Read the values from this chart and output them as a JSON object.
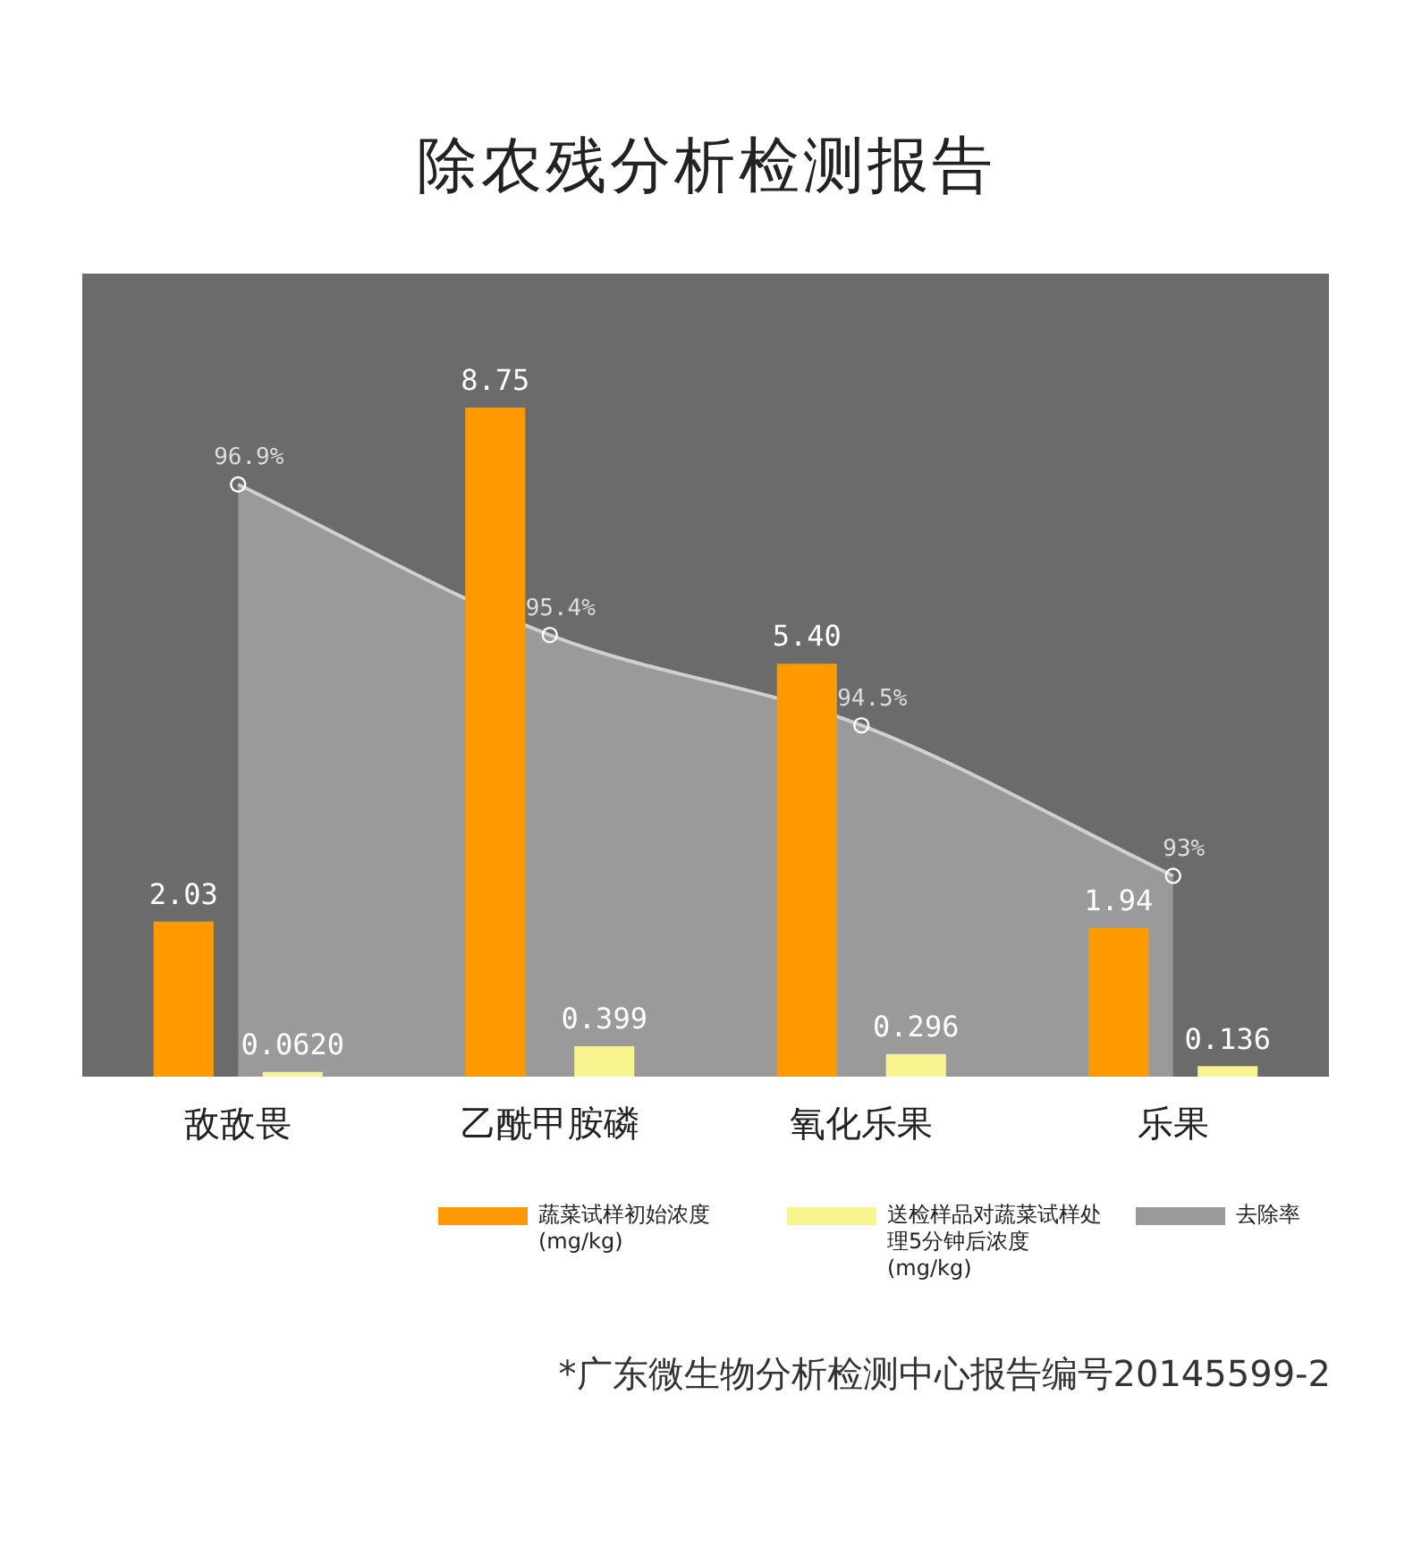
{
  "chart_data": {
    "type": "bar",
    "title": "除农残分析检测报告",
    "categories": [
      "敌敌畏",
      "乙酰甲胺磷",
      "氧化乐果",
      "乐果"
    ],
    "series": [
      {
        "name": "蔬菜试样初始浓度(mg/kg)",
        "color": "#ff9900",
        "values": [
          2.03,
          8.75,
          5.4,
          1.94
        ],
        "value_labels": [
          "2.03",
          "8.75",
          "5.40",
          "1.94"
        ]
      },
      {
        "name": "送检样品对蔬菜试样处理5分钟后浓度(mg/kg)",
        "color": "#f8f490",
        "values": [
          0.062,
          0.399,
          0.296,
          0.136
        ],
        "value_labels": [
          "0.0620",
          "0.399",
          "0.296",
          "0.136"
        ]
      },
      {
        "name": "去除率",
        "type": "area",
        "axis": "y2",
        "color": "#9a9a9a",
        "values": [
          96.9,
          95.4,
          94.5,
          93
        ],
        "value_labels": [
          "96.9%",
          "95.4%",
          "94.5%",
          "93%"
        ]
      }
    ],
    "ylim": [
      0,
      10.5
    ],
    "y2lim": [
      91,
      99
    ],
    "tick_labels": "x",
    "grid": false,
    "legend": "bottom",
    "marker": "circle",
    "annotations": [
      "*广东微生物分析检测中心报告编号20145599-2"
    ]
  }
}
